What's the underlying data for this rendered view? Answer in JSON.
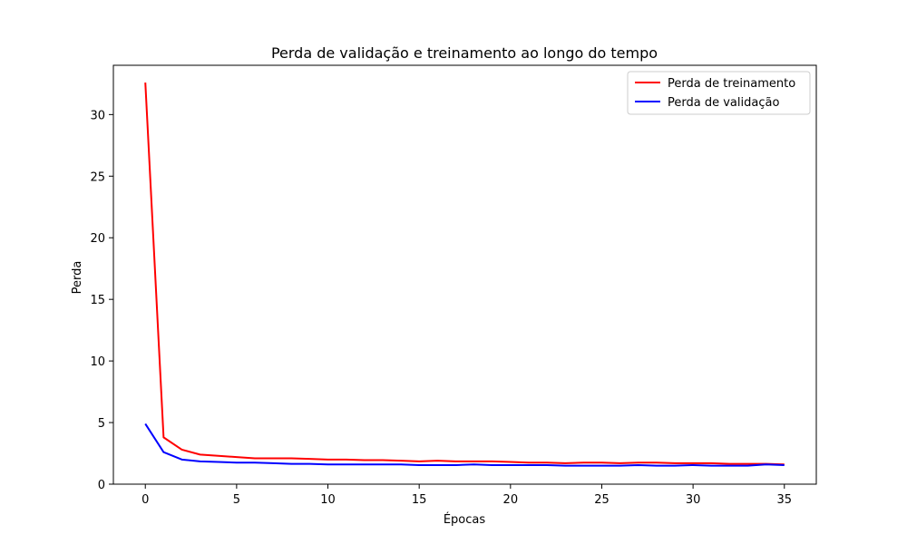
{
  "chart_data": {
    "type": "line",
    "title": "Perda de validação e treinamento ao longo do tempo",
    "xlabel": "Épocas",
    "ylabel": "Perda",
    "xlim": [
      -1.75,
      36.75
    ],
    "ylim": [
      0,
      34
    ],
    "xticks": [
      0,
      5,
      10,
      15,
      20,
      25,
      30,
      35
    ],
    "yticks": [
      0,
      5,
      10,
      15,
      20,
      25,
      30
    ],
    "grid": false,
    "legend_position": "top-right",
    "x": [
      0,
      1,
      2,
      3,
      4,
      5,
      6,
      7,
      8,
      9,
      10,
      11,
      12,
      13,
      14,
      15,
      16,
      17,
      18,
      19,
      20,
      21,
      22,
      23,
      24,
      25,
      26,
      27,
      28,
      29,
      30,
      31,
      32,
      33,
      34,
      35
    ],
    "series": [
      {
        "name": "Perda de treinamento",
        "color": "#ff0000",
        "values": [
          32.6,
          3.8,
          2.8,
          2.4,
          2.3,
          2.2,
          2.1,
          2.1,
          2.1,
          2.05,
          2.0,
          2.0,
          1.95,
          1.95,
          1.9,
          1.85,
          1.9,
          1.85,
          1.85,
          1.85,
          1.8,
          1.75,
          1.75,
          1.7,
          1.75,
          1.75,
          1.7,
          1.75,
          1.75,
          1.7,
          1.7,
          1.7,
          1.65,
          1.65,
          1.65,
          1.6
        ]
      },
      {
        "name": "Perda de validação",
        "color": "#0000ff",
        "values": [
          4.9,
          2.6,
          2.0,
          1.85,
          1.8,
          1.75,
          1.75,
          1.7,
          1.65,
          1.65,
          1.6,
          1.6,
          1.6,
          1.6,
          1.6,
          1.55,
          1.55,
          1.55,
          1.6,
          1.55,
          1.55,
          1.55,
          1.55,
          1.5,
          1.5,
          1.5,
          1.5,
          1.55,
          1.5,
          1.5,
          1.55,
          1.5,
          1.5,
          1.5,
          1.6,
          1.55
        ]
      }
    ]
  }
}
